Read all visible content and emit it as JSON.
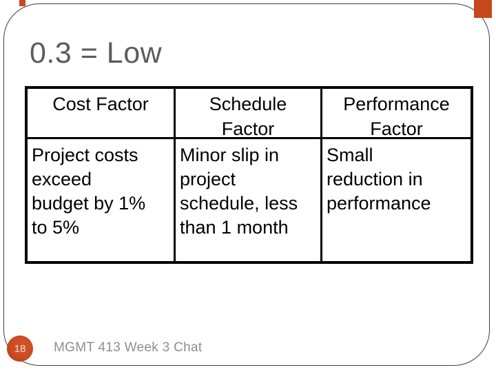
{
  "slide": {
    "title": "0.3 = Low",
    "page_number": "18",
    "footer": "MGMT 413 Week 3 Chat",
    "accent_color": "#c7481e",
    "title_color": "#5c5c5c",
    "table_border_color": "#000000"
  },
  "table": {
    "headers": [
      "Cost Factor",
      "Schedule\nFactor",
      "Performance\nFactor"
    ],
    "row": [
      "Project costs\nexceed\nbudget by 1%\nto 5%",
      "Minor slip in\nproject\nschedule, less\nthan 1 month",
      "Small\nreduction in\nperformance"
    ]
  }
}
